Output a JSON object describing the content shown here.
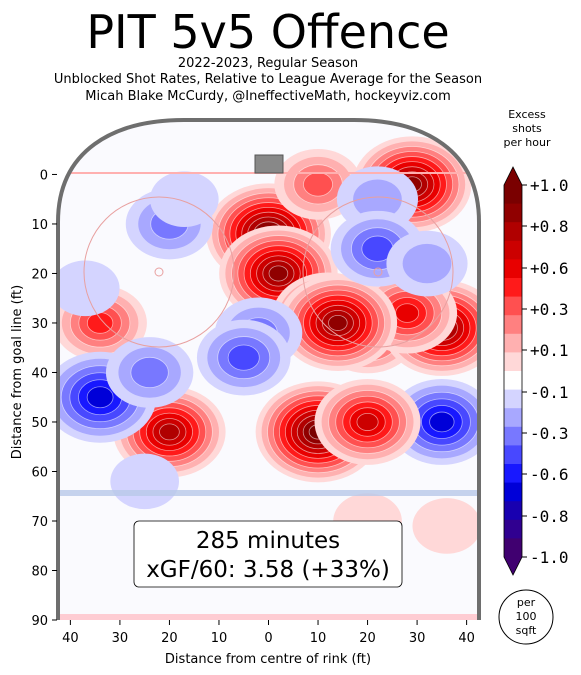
{
  "title": "PIT 5v5 Offence",
  "subtitle_lines": [
    "2022-2023, Regular Season",
    "Unblocked Shot Rates, Relative to League Average for the Season",
    "Micah Blake McCurdy, @IneffectiveMath, hockeyviz.com"
  ],
  "colorbar": {
    "title_lines": [
      "Excess",
      "shots",
      "per hour"
    ],
    "ticks": [
      "+1.0",
      "+0.8",
      "+0.6",
      "+0.3",
      "+0.1",
      "-0.1",
      "-0.3",
      "-0.6",
      "-0.8",
      "-1.0"
    ],
    "colors": [
      "#7a0000",
      "#900000",
      "#b00000",
      "#cc0000",
      "#e80000",
      "#ff1a1a",
      "#ff5050",
      "#ff8080",
      "#ffb0b0",
      "#ffd8d8",
      "#ffffff",
      "#d4d4ff",
      "#a8a8ff",
      "#7878ff",
      "#4848ff",
      "#1818ff",
      "#0000d8",
      "#1800b0",
      "#300090",
      "#400070"
    ]
  },
  "box": {
    "line1": "285 minutes",
    "line2": "xGF/60: 3.58 (+33%)"
  },
  "units_badge": [
    "per",
    "100",
    "sqft"
  ],
  "chart_data": {
    "type": "heatmap",
    "xlabel": "Distance from centre of rink (ft)",
    "ylabel": "Distance from goal line (ft)",
    "xticks": [
      "40",
      "30",
      "20",
      "10",
      "0",
      "10",
      "20",
      "30",
      "40"
    ],
    "yticks": [
      "0",
      "10",
      "20",
      "30",
      "40",
      "50",
      "60",
      "70",
      "80",
      "90"
    ],
    "xlim": [
      -42.5,
      42.5
    ],
    "ylim": [
      -11,
      90
    ],
    "blobs": [
      {
        "x": 0,
        "y": 12,
        "v": 1.0
      },
      {
        "x": 2,
        "y": 20,
        "v": 0.9
      },
      {
        "x": 12,
        "y": 29,
        "v": 0.8
      },
      {
        "x": 20,
        "y": 32,
        "v": 0.6
      },
      {
        "x": 35,
        "y": 31,
        "v": 0.9
      },
      {
        "x": 28,
        "y": 28,
        "v": 0.6
      },
      {
        "x": 14,
        "y": 30,
        "v": 0.9
      },
      {
        "x": 10,
        "y": 52,
        "v": 1.0
      },
      {
        "x": -20,
        "y": 52,
        "v": 0.8
      },
      {
        "x": 29,
        "y": 2,
        "v": 0.9
      },
      {
        "x": 10,
        "y": 2,
        "v": 0.4
      },
      {
        "x": -34,
        "y": 30,
        "v": 0.5
      },
      {
        "x": -37,
        "y": 23,
        "v": -0.1
      },
      {
        "x": -20,
        "y": 10,
        "v": -0.4
      },
      {
        "x": -17,
        "y": 5,
        "v": -0.1
      },
      {
        "x": -2,
        "y": 32,
        "v": -0.4
      },
      {
        "x": -5,
        "y": 37,
        "v": -0.5
      },
      {
        "x": 22,
        "y": 5,
        "v": -0.3
      },
      {
        "x": 22,
        "y": 15,
        "v": -0.5
      },
      {
        "x": 32,
        "y": 18,
        "v": -0.3
      },
      {
        "x": -34,
        "y": 45,
        "v": -0.8
      },
      {
        "x": -24,
        "y": 40,
        "v": -0.4
      },
      {
        "x": 35,
        "y": 50,
        "v": -0.7
      },
      {
        "x": -25,
        "y": 62,
        "v": -0.1
      },
      {
        "x": 20,
        "y": 70,
        "v": 0.1
      },
      {
        "x": 36,
        "y": 71,
        "v": 0.1
      },
      {
        "x": 20,
        "y": 50,
        "v": 0.7
      }
    ]
  }
}
